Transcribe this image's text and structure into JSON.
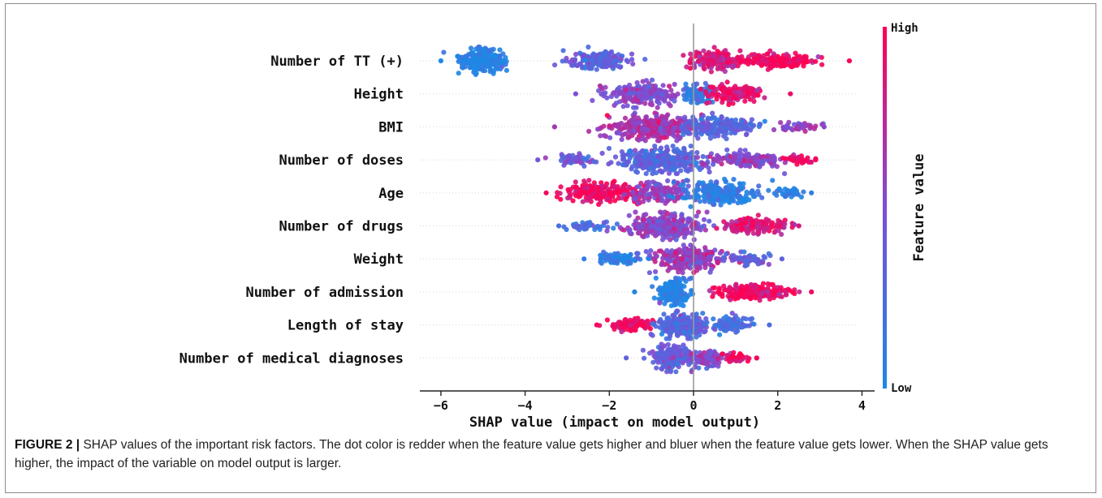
{
  "caption": {
    "label": "FIGURE 2 |",
    "text": "SHAP values of the important risk factors. The dot color is redder when the feature value gets higher and bluer when the feature value gets lower. When the SHAP value gets higher, the impact of the variable on model output is larger."
  },
  "chart_data": {
    "type": "scatter",
    "subtype": "shap-beeswarm",
    "xlabel": "SHAP value (impact on model output)",
    "xlim": [
      -6.5,
      4.3
    ],
    "xticks": [
      -6,
      -4,
      -2,
      0,
      2,
      4
    ],
    "colorbar": {
      "label": "Feature value",
      "high": "High",
      "low": "Low",
      "low_color": "#1e88e5",
      "high_color": "#ff0052"
    },
    "features": [
      {
        "name": "Number of TT (+)",
        "x_min": -6.0,
        "x_max": 3.7,
        "clusters": [
          {
            "center": -5.0,
            "width": 0.55,
            "height": 0.95,
            "count": 240,
            "value": 0.0
          },
          {
            "center": -2.3,
            "width": 0.7,
            "height": 0.7,
            "count": 200,
            "value": 0.35
          },
          {
            "center": 0.5,
            "width": 0.6,
            "height": 0.8,
            "count": 160,
            "value": 0.8
          },
          {
            "center": 2.0,
            "width": 0.8,
            "height": 0.55,
            "count": 200,
            "value": 0.97
          }
        ]
      },
      {
        "name": "Height",
        "x_min": -2.8,
        "x_max": 2.3,
        "clusters": [
          {
            "center": -1.2,
            "width": 0.8,
            "height": 0.9,
            "count": 220,
            "value": 0.5
          },
          {
            "center": 0.1,
            "width": 0.35,
            "height": 0.7,
            "count": 80,
            "value": 0.1
          },
          {
            "center": 1.0,
            "width": 0.65,
            "height": 0.75,
            "count": 160,
            "value": 0.92
          }
        ]
      },
      {
        "name": "BMI",
        "x_min": -3.3,
        "x_max": 3.1,
        "clusters": [
          {
            "center": -1.0,
            "width": 1.0,
            "height": 1.0,
            "count": 320,
            "value": 0.65
          },
          {
            "center": 0.6,
            "width": 0.9,
            "height": 0.8,
            "count": 200,
            "value": 0.3
          },
          {
            "center": 2.5,
            "width": 0.5,
            "height": 0.4,
            "count": 40,
            "value": 0.55
          }
        ]
      },
      {
        "name": "Number of doses",
        "x_min": -3.7,
        "x_max": 2.9,
        "clusters": [
          {
            "center": -2.8,
            "width": 0.5,
            "height": 0.4,
            "count": 50,
            "value": 0.45
          },
          {
            "center": -0.8,
            "width": 1.0,
            "height": 1.0,
            "count": 320,
            "value": 0.3
          },
          {
            "center": 1.3,
            "width": 0.9,
            "height": 0.6,
            "count": 160,
            "value": 0.55
          },
          {
            "center": 2.5,
            "width": 0.35,
            "height": 0.3,
            "count": 30,
            "value": 0.97
          }
        ]
      },
      {
        "name": "Age",
        "x_min": -3.5,
        "x_max": 2.8,
        "clusters": [
          {
            "center": -2.2,
            "width": 0.9,
            "height": 0.8,
            "count": 200,
            "value": 0.95
          },
          {
            "center": -0.8,
            "width": 0.7,
            "height": 0.9,
            "count": 140,
            "value": 0.55
          },
          {
            "center": 0.6,
            "width": 0.9,
            "height": 1.0,
            "count": 220,
            "value": 0.08
          },
          {
            "center": 2.3,
            "width": 0.4,
            "height": 0.4,
            "count": 40,
            "value": 0.1
          }
        ]
      },
      {
        "name": "Number of drugs",
        "x_min": -3.2,
        "x_max": 2.5,
        "clusters": [
          {
            "center": -2.5,
            "width": 0.5,
            "height": 0.4,
            "count": 40,
            "value": 0.2
          },
          {
            "center": -0.7,
            "width": 0.9,
            "height": 1.0,
            "count": 280,
            "value": 0.55
          },
          {
            "center": 1.5,
            "width": 0.8,
            "height": 0.6,
            "count": 150,
            "value": 0.85
          }
        ]
      },
      {
        "name": "Weight",
        "x_min": -2.6,
        "x_max": 2.1,
        "clusters": [
          {
            "center": -1.8,
            "width": 0.6,
            "height": 0.5,
            "count": 80,
            "value": 0.1
          },
          {
            "center": -0.1,
            "width": 0.8,
            "height": 1.0,
            "count": 260,
            "value": 0.6
          },
          {
            "center": 1.3,
            "width": 0.5,
            "height": 0.5,
            "count": 60,
            "value": 0.35
          }
        ]
      },
      {
        "name": "Number of admission",
        "x_min": -1.4,
        "x_max": 2.8,
        "clusters": [
          {
            "center": -0.5,
            "width": 0.35,
            "height": 1.0,
            "count": 200,
            "value": 0.03
          },
          {
            "center": 1.4,
            "width": 0.9,
            "height": 0.6,
            "count": 200,
            "value": 0.95
          }
        ]
      },
      {
        "name": "Length of stay",
        "x_min": -2.3,
        "x_max": 1.8,
        "clusters": [
          {
            "center": -1.5,
            "width": 0.5,
            "height": 0.5,
            "count": 100,
            "value": 0.95
          },
          {
            "center": -0.3,
            "width": 0.55,
            "height": 1.0,
            "count": 250,
            "value": 0.3
          },
          {
            "center": 0.9,
            "width": 0.5,
            "height": 0.6,
            "count": 100,
            "value": 0.25
          }
        ]
      },
      {
        "name": "Number of medical diagnoses",
        "x_min": -1.6,
        "x_max": 1.5,
        "clusters": [
          {
            "center": -0.5,
            "width": 0.5,
            "height": 1.0,
            "count": 180,
            "value": 0.35
          },
          {
            "center": 0.3,
            "width": 0.35,
            "height": 0.8,
            "count": 100,
            "value": 0.55
          },
          {
            "center": 1.0,
            "width": 0.3,
            "height": 0.4,
            "count": 40,
            "value": 0.95
          }
        ]
      }
    ]
  }
}
